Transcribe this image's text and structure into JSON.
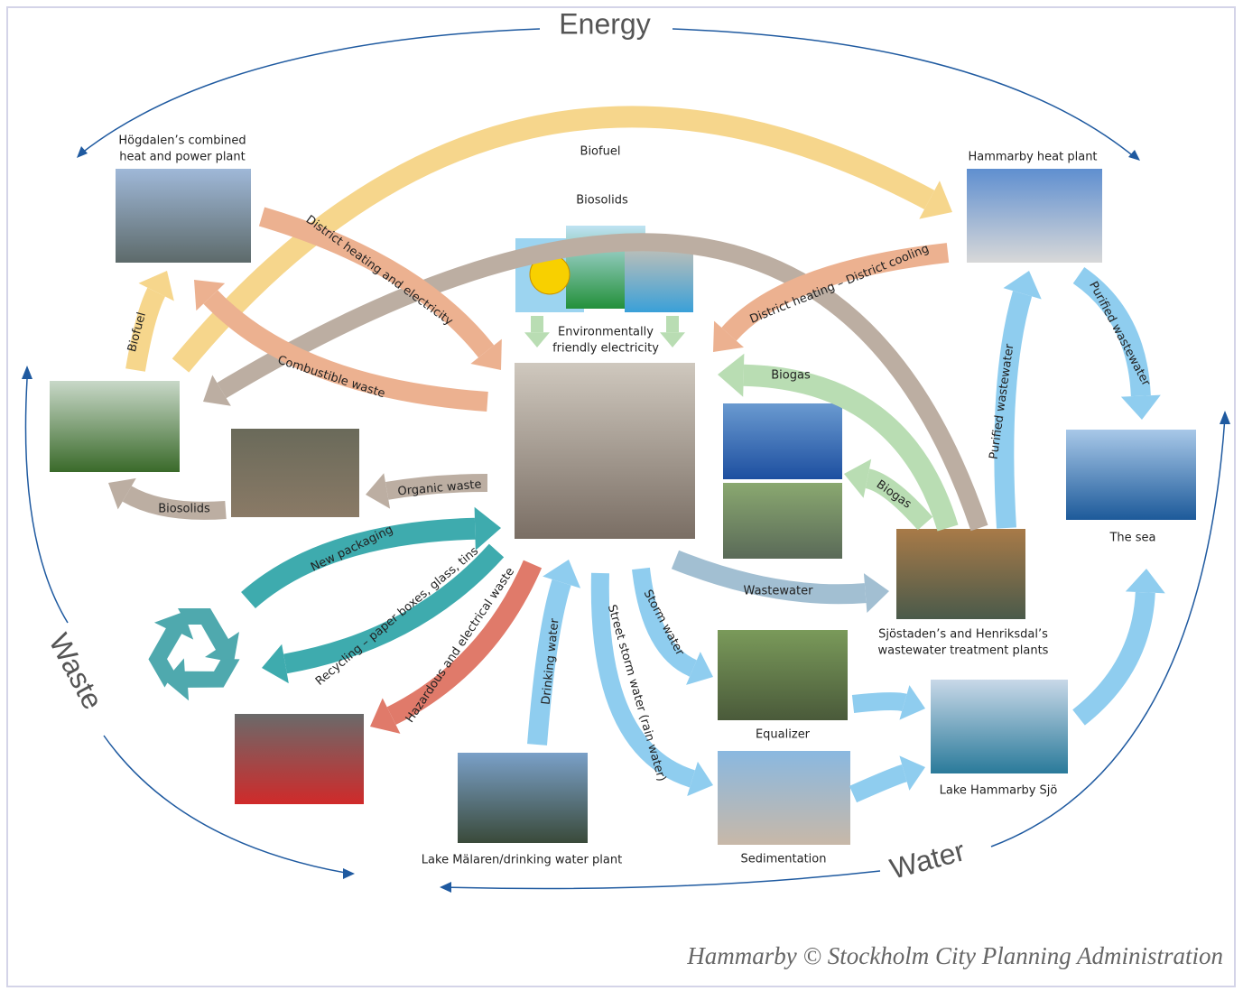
{
  "cycles": {
    "energy": "Energy",
    "waste": "Waste",
    "water": "Water"
  },
  "nodes": [
    {
      "lines": [
        "Högdalen’s combined",
        "heat and power plant"
      ]
    },
    {
      "lines": [
        "Hammarby heat plant"
      ]
    },
    {
      "lines": [
        "Environmentally",
        "friendly electricity"
      ]
    },
    {
      "lines": [
        "The sea"
      ]
    },
    {
      "lines": [
        "Sjöstaden’s and Henriksdal’s",
        "wastewater treatment plants"
      ]
    },
    {
      "lines": [
        "Equalizer"
      ]
    },
    {
      "lines": [
        "Lake Hammarby Sjö"
      ]
    },
    {
      "lines": [
        "Sedimentation"
      ]
    },
    {
      "lines": [
        "Lake Mälaren/drinking water plant"
      ]
    }
  ],
  "flows": [
    {
      "label": "Biofuel"
    },
    {
      "label": "Biosolids"
    },
    {
      "label": "District heating and electricity"
    },
    {
      "label": "Biofuel"
    },
    {
      "label": "Combustible waste"
    },
    {
      "label": "District heating – District cooling"
    },
    {
      "label": "Biogas"
    },
    {
      "label": "Biogas"
    },
    {
      "label": "Purified wastewater"
    },
    {
      "label": "Purified wastewater"
    },
    {
      "label": "Organic waste"
    },
    {
      "label": "Biosolids"
    },
    {
      "label": "New packaging"
    },
    {
      "label": "Recycling – paper boxes, glass, tins"
    },
    {
      "label": "Hazardous and electrical waste"
    },
    {
      "label": "Drinking water"
    },
    {
      "label": "Street storm water (rain water)"
    },
    {
      "label": "Storm water"
    },
    {
      "label": "Wastewater"
    }
  ],
  "credit": "Hammarby © Stockholm City Planning Administration"
}
